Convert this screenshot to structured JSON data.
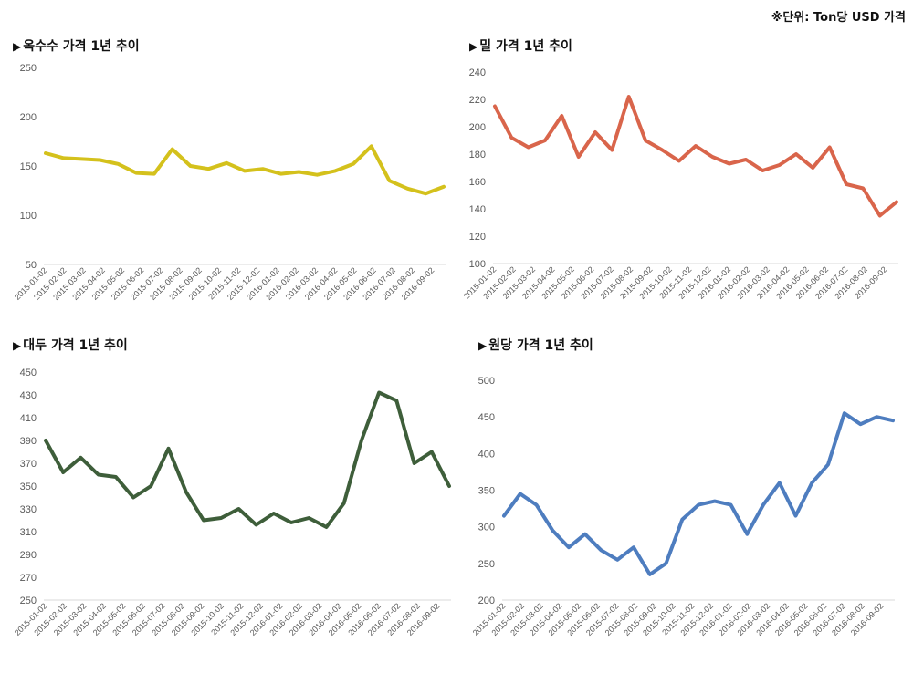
{
  "unit_note": "※단위: Ton당 USD 가격",
  "marker": "▶",
  "chart_data": [
    {
      "type": "line",
      "title": "옥수수 가격 1년 추이",
      "color": "#d4c11c",
      "ylim": [
        50,
        250
      ],
      "yticks": [
        50,
        100,
        150,
        200,
        250
      ],
      "x_labels": [
        "2015-01-02",
        "2015-02-02",
        "2015-03-02",
        "2015-04-02",
        "2015-05-02",
        "2015-06-02",
        "2015-07-02",
        "2015-08-02",
        "2015-09-02",
        "2015-10-02",
        "2015-11-02",
        "2015-12-02",
        "2016-01-02",
        "2016-02-02",
        "2016-03-02",
        "2016-04-02",
        "2016-05-02",
        "2016-06-02",
        "2016-07-02",
        "2016-08-02",
        "2016-09-02"
      ],
      "series": [
        {
          "values": [
            163,
            158,
            157,
            156,
            152,
            143,
            142,
            167,
            150,
            147,
            153,
            145,
            147,
            142,
            144,
            141,
            145,
            152,
            170,
            135,
            127,
            122,
            129
          ]
        }
      ]
    },
    {
      "type": "line",
      "title": "밀 가격 1년 추이",
      "color": "#d9654b",
      "ylim": [
        100,
        240
      ],
      "yticks": [
        100,
        120,
        140,
        160,
        180,
        200,
        220,
        240
      ],
      "x_labels": [
        "2015-01-02",
        "2015-02-02",
        "2015-03-02",
        "2015-04-02",
        "2015-05-02",
        "2015-06-02",
        "2015-07-02",
        "2015-08-02",
        "2015-09-02",
        "2015-10-02",
        "2015-11-02",
        "2015-12-02",
        "2016-01-02",
        "2016-02-02",
        "2016-03-02",
        "2016-04-02",
        "2016-05-02",
        "2016-06-02",
        "2016-07-02",
        "2016-08-02",
        "2016-09-02"
      ],
      "series": [
        {
          "values": [
            215,
            192,
            185,
            190,
            208,
            178,
            196,
            183,
            222,
            190,
            183,
            175,
            186,
            178,
            173,
            176,
            168,
            172,
            180,
            170,
            185,
            158,
            155,
            135,
            145
          ]
        }
      ]
    },
    {
      "type": "line",
      "title": "대두 가격 1년 추이",
      "color": "#3e5e3a",
      "ylim": [
        250,
        450
      ],
      "yticks": [
        250,
        270,
        290,
        310,
        330,
        350,
        370,
        390,
        410,
        430,
        450
      ],
      "x_labels": [
        "2015-01-02",
        "2015-02-02",
        "2015-03-02",
        "2015-04-02",
        "2015-05-02",
        "2015-06-02",
        "2015-07-02",
        "2015-08-02",
        "2015-09-02",
        "2015-10-02",
        "2015-11-02",
        "2015-12-02",
        "2016-01-02",
        "2016-02-02",
        "2016-03-02",
        "2016-04-02",
        "2016-05-02",
        "2016-06-02",
        "2016-07-02",
        "2016-08-02",
        "2016-09-02"
      ],
      "series": [
        {
          "values": [
            390,
            362,
            375,
            360,
            358,
            340,
            350,
            383,
            345,
            320,
            322,
            330,
            316,
            326,
            318,
            322,
            314,
            335,
            390,
            432,
            425,
            370,
            380,
            350
          ]
        }
      ]
    },
    {
      "type": "line",
      "title": "원당 가격 1년 추이",
      "color": "#4e7dbf",
      "ylim": [
        200,
        500
      ],
      "yticks": [
        200,
        250,
        300,
        350,
        400,
        450,
        500
      ],
      "x_labels": [
        "2015-01-02",
        "2015-02-02",
        "2015-03-02",
        "2015-04-02",
        "2015-05-02",
        "2015-06-02",
        "2015-07-02",
        "2015-08-02",
        "2015-09-02",
        "2015-10-02",
        "2015-11-02",
        "2015-12-02",
        "2016-01-02",
        "2016-02-02",
        "2016-03-02",
        "2016-04-02",
        "2016-05-02",
        "2016-06-02",
        "2016-07-02",
        "2016-08-02",
        "2016-09-02"
      ],
      "series": [
        {
          "values": [
            315,
            345,
            330,
            295,
            272,
            290,
            268,
            255,
            272,
            235,
            250,
            310,
            330,
            335,
            330,
            290,
            330,
            360,
            315,
            360,
            385,
            455,
            440,
            450,
            445
          ]
        }
      ]
    }
  ]
}
